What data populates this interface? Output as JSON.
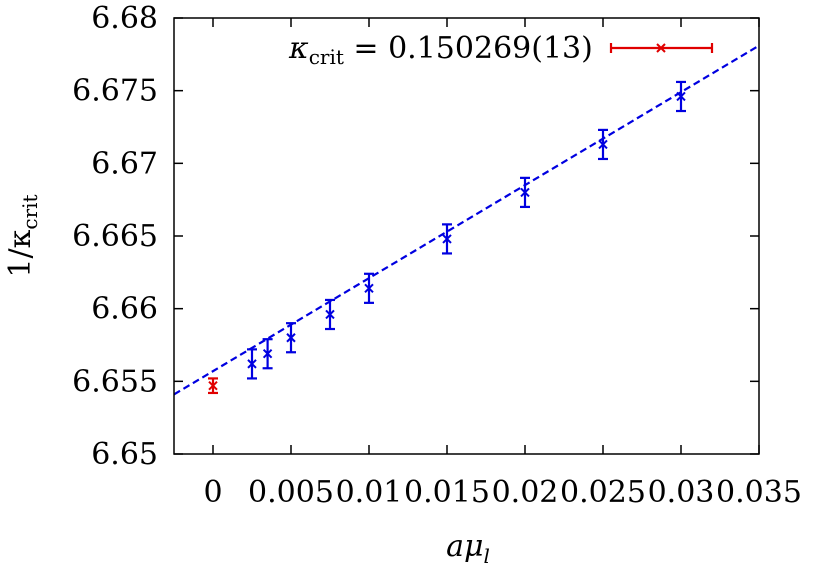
{
  "chart_data": {
    "type": "scatter",
    "title": "",
    "xlabel_main": "aμ",
    "xlabel_sub": "l",
    "ylabel_main": "1/κ",
    "ylabel_sub": "crit",
    "xlim": [
      -0.0025,
      0.035
    ],
    "ylim": [
      6.65,
      6.68
    ],
    "x_ticks": [
      0,
      0.005,
      0.01,
      0.015,
      0.02,
      0.025,
      0.03,
      0.035
    ],
    "x_tick_labels": [
      "0",
      "0.005",
      "0.01",
      "0.015",
      "0.02",
      "0.025",
      "0.03",
      "0.035"
    ],
    "y_ticks": [
      6.65,
      6.655,
      6.66,
      6.665,
      6.67,
      6.675,
      6.68
    ],
    "y_tick_labels": [
      "6.65",
      "6.655",
      "6.66",
      "6.665",
      "6.67",
      "6.675",
      "6.68"
    ],
    "grid": false,
    "legend_position": "top-right",
    "legend_label_main": "κ",
    "legend_label_sub": "crit",
    "legend_label_value": " = 0.150269(13)",
    "colors": {
      "data": "#0000e0",
      "extrapolated": "#e00000",
      "fit": "#0000e0",
      "axes": "#000000"
    },
    "series": [
      {
        "x": [
          0.0025,
          0.0035,
          0.005,
          0.0075,
          0.01,
          0.015,
          0.02,
          0.025,
          0.03
        ],
        "y": [
          6.6562,
          6.6569,
          6.658,
          6.6596,
          6.6614,
          6.6648,
          6.668,
          6.6713,
          6.6746
        ],
        "yerr": [
          0.001,
          0.001,
          0.001,
          0.001,
          0.001,
          0.001,
          0.001,
          0.001,
          0.001
        ]
      },
      {
        "x": [
          0
        ],
        "y": [
          6.6547
        ],
        "yerr": [
          0.0005
        ]
      }
    ],
    "fit_line": {
      "x": [
        -0.0025,
        0.035
      ],
      "y": [
        6.6541,
        6.6781
      ]
    }
  }
}
